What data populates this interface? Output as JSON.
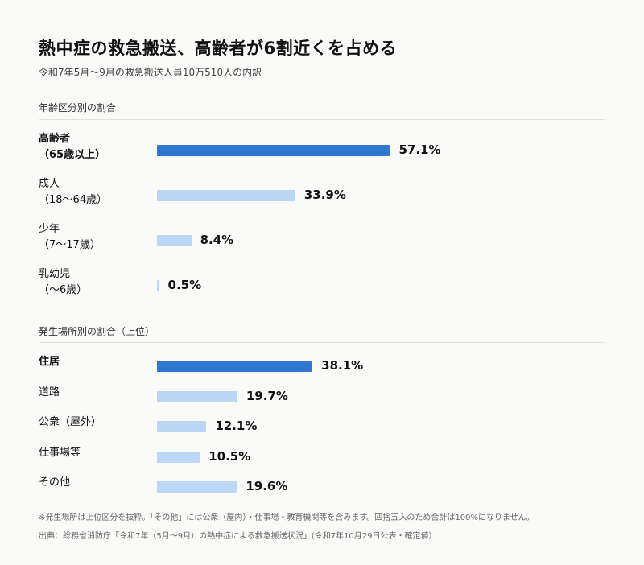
{
  "header": {
    "title": "熱中症の救急搬送、高齢者が6割近くを占める",
    "subtitle": "令和7年5月〜9月の救急搬送人員10万510人の内訳"
  },
  "colors": {
    "highlight": "#2f78d2",
    "normal": "#bcd6f5"
  },
  "chart_data": [
    {
      "type": "bar",
      "orientation": "horizontal",
      "title": "年齢区分別の割合",
      "unit": "%",
      "categories": [
        [
          "高齢者",
          "（65歳以上）"
        ],
        [
          "成人",
          "（18〜64歳）"
        ],
        [
          "少年",
          "（7〜17歳）"
        ],
        [
          "乳幼児",
          "（〜6歳）"
        ]
      ],
      "values": [
        57.1,
        33.9,
        8.4,
        0.5
      ],
      "value_labels": [
        "57.1%",
        "33.9%",
        "8.4%",
        "0.5%"
      ],
      "highlight_index": 0
    },
    {
      "type": "bar",
      "orientation": "horizontal",
      "title": "発生場所別の割合（上位）",
      "unit": "%",
      "categories": [
        [
          "住居"
        ],
        [
          "道路"
        ],
        [
          "公衆（屋外）"
        ],
        [
          "仕事場等"
        ],
        [
          "その他"
        ]
      ],
      "values": [
        38.1,
        19.7,
        12.1,
        10.5,
        19.6
      ],
      "value_labels": [
        "38.1%",
        "19.7%",
        "12.1%",
        "10.5%",
        "19.6%"
      ],
      "highlight_index": 0
    }
  ],
  "footer": {
    "note": "※発生場所は上位区分を抜粋。「その他」には公衆（屋内）・仕事場・教育機関等を含みます。四捨五入のため合計は100%になりません。",
    "source": "出典：総務省消防庁「令和7年（5月〜9月）の熱中症による救急搬送状況」(令和7年10月29日公表・確定値）"
  }
}
